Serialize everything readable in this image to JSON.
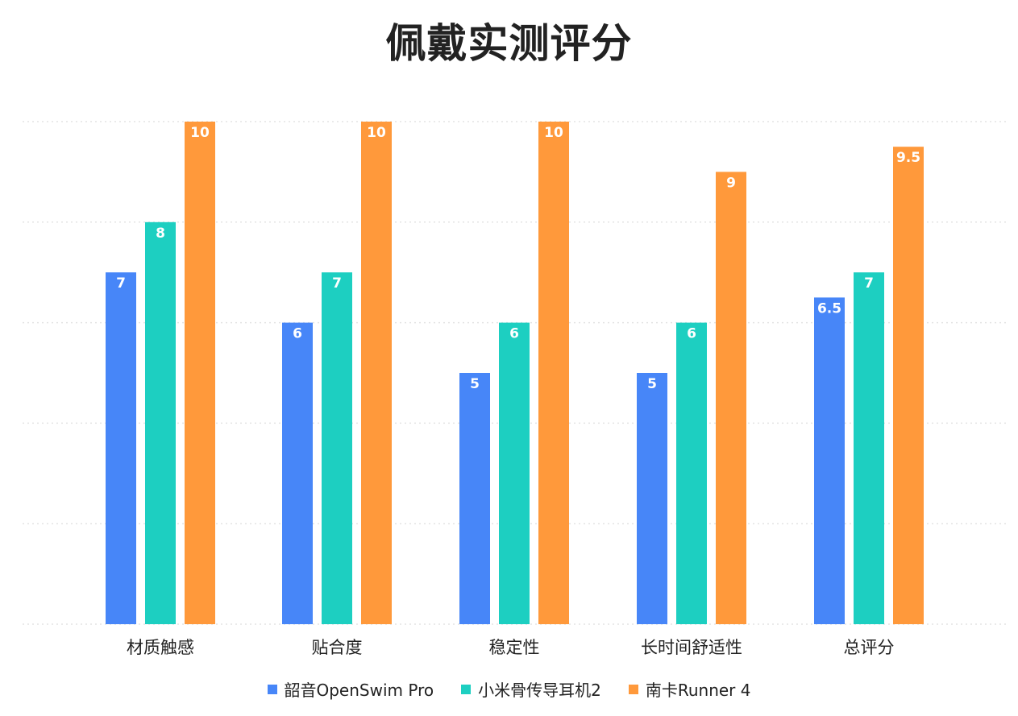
{
  "chart_data": {
    "type": "bar",
    "title": "佩戴实测评分",
    "xlabel": "",
    "ylabel": "",
    "ylim": [
      0,
      10
    ],
    "grid": true,
    "legend_position": "bottom-center",
    "categories": [
      "材质触感",
      "贴合度",
      "稳定性",
      "长时间舒适性",
      "总评分"
    ],
    "series": [
      {
        "name": "韶音OpenSwim Pro",
        "color": "#4786F8",
        "values": [
          7,
          6,
          5,
          5,
          6.5
        ]
      },
      {
        "name": "小米骨传导耳机2",
        "color": "#1DCFC1",
        "values": [
          8,
          7,
          6,
          6,
          7
        ]
      },
      {
        "name": "南卡Runner 4",
        "color": "#FF993B",
        "values": [
          10,
          10,
          10,
          9,
          9.5
        ]
      }
    ]
  }
}
